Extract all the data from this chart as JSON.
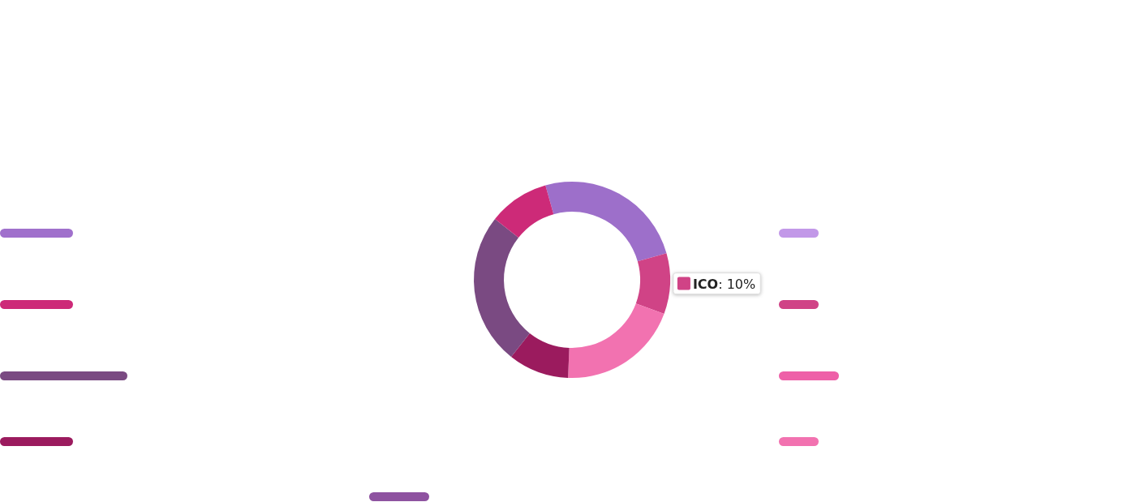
{
  "chart_data": {
    "type": "donut",
    "categories": [
      null,
      "ICO",
      null,
      null,
      null,
      null
    ],
    "values": [
      25,
      10,
      20,
      10,
      25,
      10
    ],
    "colors": [
      "#9d6fca",
      "#d04386",
      "#f272b0",
      "#9b1b5e",
      "#7a4a82",
      "#cd2a78"
    ],
    "value_labels": [
      null,
      ": 10%",
      null,
      null,
      null,
      null
    ],
    "legend": "right"
  }
}
